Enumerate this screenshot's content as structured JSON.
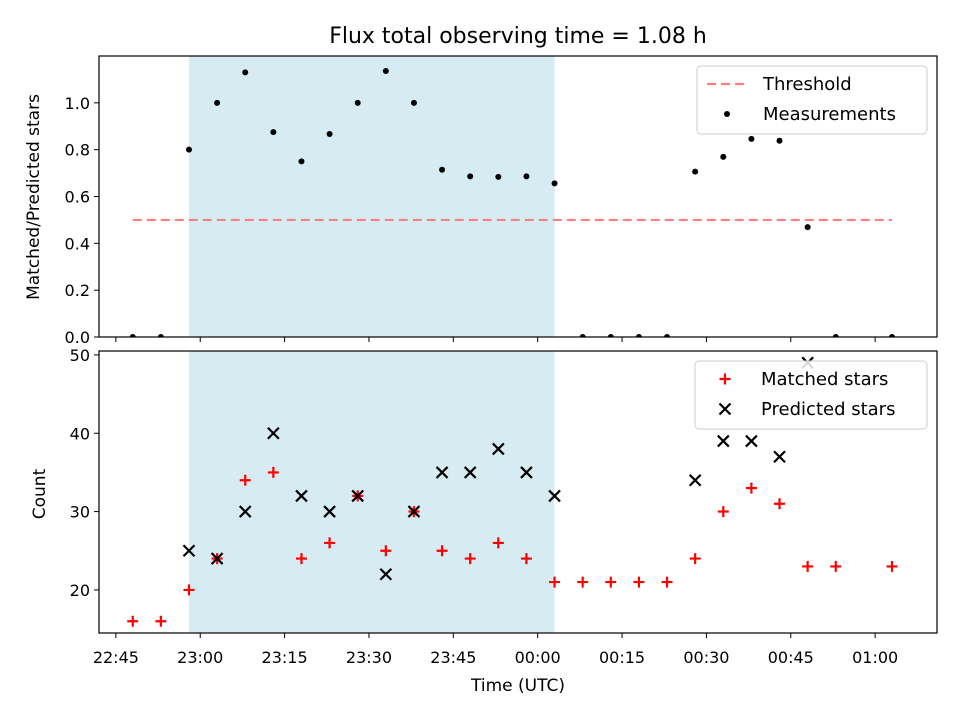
{
  "figure": {
    "title": "Flux total observing time = 1.08 h",
    "xlabel": "Time (UTC)"
  },
  "colors": {
    "threshold": "#ff7f7f",
    "measurements": "#000000",
    "matched": "#ff0000",
    "predicted": "#000000",
    "highlight": "#add8e6"
  },
  "chart_data": [
    {
      "type": "scatter",
      "ylabel": "Matched/Predicted stars",
      "xlim": [
        "22:42",
        "01:11"
      ],
      "ylim": [
        0,
        1.2
      ],
      "yticks": [
        0.0,
        0.2,
        0.4,
        0.6,
        0.8,
        1.0
      ],
      "xticks": [
        "22:45",
        "23:00",
        "23:15",
        "23:30",
        "23:45",
        "00:00",
        "00:15",
        "00:30",
        "00:45",
        "01:00"
      ],
      "grid": false,
      "legend_position": "top-right",
      "shaded_interval": [
        "22:58",
        "00:03"
      ],
      "threshold": {
        "name": "Threshold",
        "y": 0.5,
        "x_range": [
          "22:48",
          "01:03"
        ],
        "style": "dashed"
      },
      "series": [
        {
          "name": "Measurements",
          "marker": "dot",
          "x": [
            "22:48",
            "22:53",
            "22:58",
            "23:03",
            "23:08",
            "23:13",
            "23:18",
            "23:23",
            "23:28",
            "23:33",
            "23:38",
            "23:43",
            "23:48",
            "23:53",
            "23:58",
            "00:03",
            "00:08",
            "00:13",
            "00:18",
            "00:23",
            "00:28",
            "00:33",
            "00:38",
            "00:43",
            "00:48",
            "00:53",
            "01:03"
          ],
          "y": [
            0.0,
            0.0,
            0.8,
            1.0,
            1.13,
            0.875,
            0.75,
            0.867,
            1.0,
            1.136,
            1.0,
            0.714,
            0.686,
            0.684,
            0.686,
            0.656,
            0.0,
            0.0,
            0.0,
            0.0,
            0.706,
            0.769,
            0.846,
            0.838,
            0.469,
            0.0,
            0.0
          ]
        }
      ]
    },
    {
      "type": "scatter",
      "ylabel": "Count",
      "xlabel": "Time (UTC)",
      "xlim": [
        "22:42",
        "01:11"
      ],
      "ylim": [
        14.5,
        50.5
      ],
      "yticks": [
        20,
        30,
        40,
        50
      ],
      "xticks": [
        "22:45",
        "23:00",
        "23:15",
        "23:30",
        "23:45",
        "00:00",
        "00:15",
        "00:30",
        "00:45",
        "01:00"
      ],
      "grid": false,
      "legend_position": "top-right",
      "shaded_interval": [
        "22:58",
        "00:03"
      ],
      "series": [
        {
          "name": "Matched stars",
          "marker": "plus",
          "x": [
            "22:48",
            "22:53",
            "22:58",
            "23:03",
            "23:08",
            "23:13",
            "23:18",
            "23:23",
            "23:28",
            "23:33",
            "23:38",
            "23:43",
            "23:48",
            "23:53",
            "23:58",
            "00:03",
            "00:08",
            "00:13",
            "00:18",
            "00:23",
            "00:28",
            "00:33",
            "00:38",
            "00:43",
            "00:48",
            "00:53",
            "01:03"
          ],
          "y": [
            16,
            16,
            20,
            24,
            34,
            35,
            24,
            26,
            32,
            25,
            30,
            25,
            24,
            26,
            24,
            21,
            21,
            21,
            21,
            21,
            24,
            30,
            33,
            31,
            23,
            23,
            23
          ]
        },
        {
          "name": "Predicted stars",
          "marker": "x",
          "x": [
            "22:58",
            "23:03",
            "23:08",
            "23:13",
            "23:18",
            "23:23",
            "23:28",
            "23:33",
            "23:38",
            "23:43",
            "23:48",
            "23:53",
            "23:58",
            "00:03",
            "00:28",
            "00:33",
            "00:38",
            "00:43",
            "00:48"
          ],
          "y": [
            25,
            24,
            30,
            40,
            32,
            30,
            32,
            22,
            30,
            35,
            35,
            38,
            35,
            32,
            34,
            39,
            39,
            37,
            49
          ]
        }
      ]
    }
  ]
}
